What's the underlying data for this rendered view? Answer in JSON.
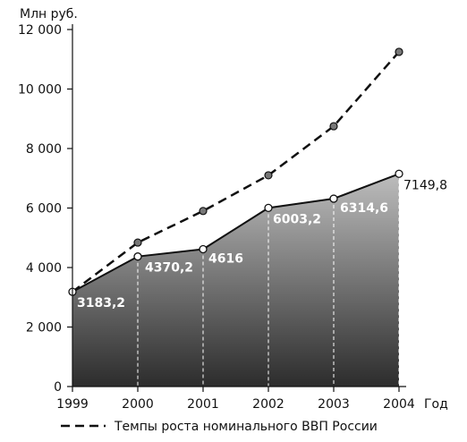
{
  "chart_data": {
    "type": "area",
    "x": [
      "1999",
      "2000",
      "2001",
      "2002",
      "2003",
      "2004"
    ],
    "y_unit_label": "Млн руб.",
    "x_unit_label": "Год",
    "ylim": [
      0,
      12000
    ],
    "y_ticks": [
      0,
      2000,
      4000,
      6000,
      8000,
      10000,
      12000
    ],
    "y_tick_labels": [
      "0",
      "2 000",
      "4 000",
      "6 000",
      "8 000",
      "10 000",
      "12 000"
    ],
    "grid": false,
    "series": [
      {
        "style": "filled-area",
        "values": [
          3183.2,
          4370.2,
          4616,
          6003.2,
          6314.6,
          7149.8
        ],
        "labels": [
          "3183,2",
          "4370,2",
          "4616",
          "6003,2",
          "6314,6",
          "7149,8"
        ]
      },
      {
        "name": "Темпы роста номинального ВВП России",
        "style": "dashed-line",
        "values": [
          3183.2,
          4840,
          5900,
          7100,
          8750,
          11250
        ]
      }
    ],
    "legend": {
      "placement": "bottom",
      "text": "Темпы роста номинального ВВП России"
    }
  }
}
